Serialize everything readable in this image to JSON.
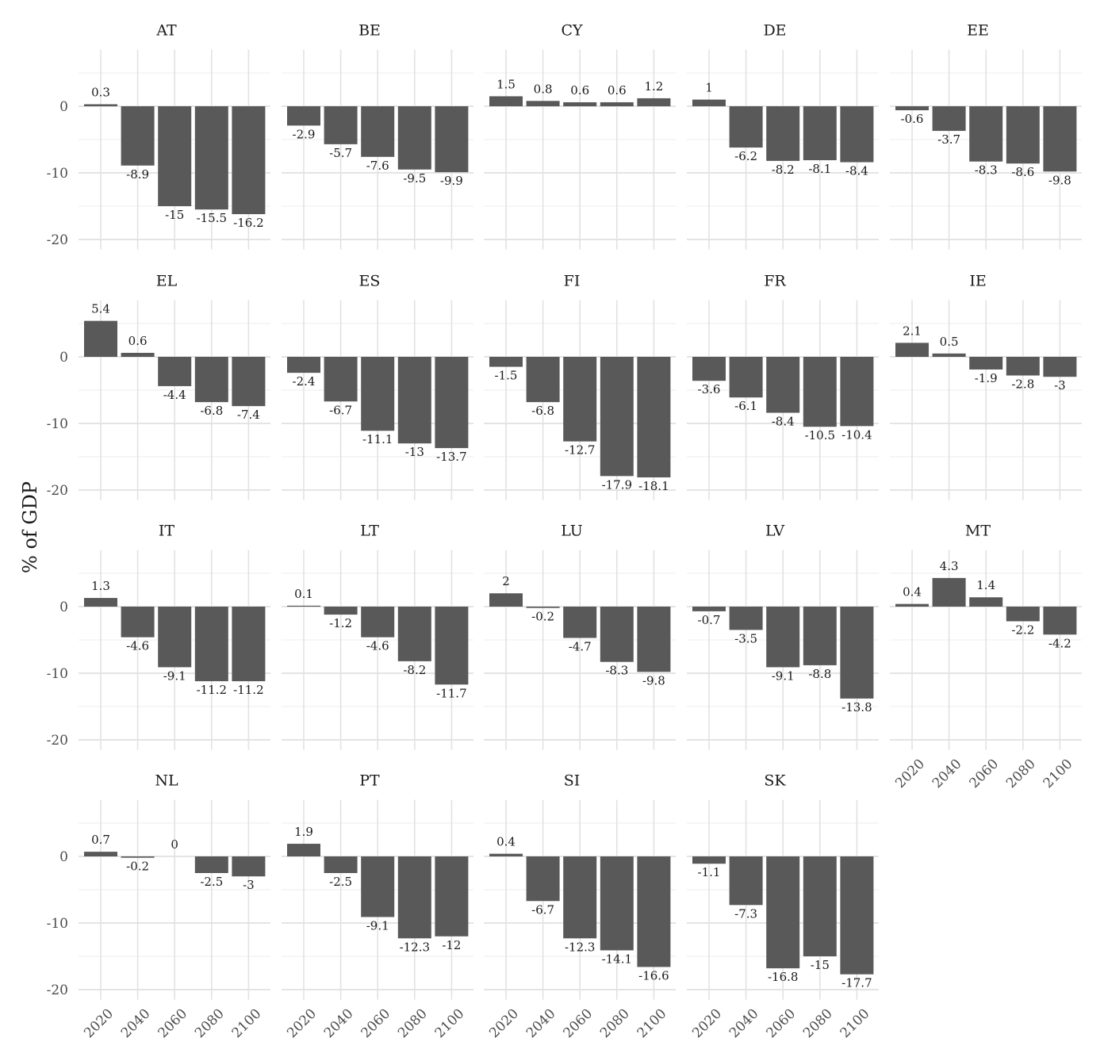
{
  "chart_data": {
    "type": "bar",
    "layout": "facet_wrap",
    "ylabel": "% of GDP",
    "xlabel": "",
    "x_ticks": [
      "2020",
      "2040",
      "2060",
      "2080",
      "2100"
    ],
    "y_ticks": [
      0,
      -10,
      -20
    ],
    "ylim": [
      -21.5,
      8.5
    ],
    "bar_color": "#595959",
    "grid": true,
    "panels": [
      {
        "name": "AT",
        "values": [
          0.3,
          -8.9,
          -15,
          -15.5,
          -16.2
        ],
        "labels": [
          "0.3",
          "-8.9",
          "-15",
          "-15.5",
          "-16.2"
        ]
      },
      {
        "name": "BE",
        "values": [
          -2.9,
          -5.7,
          -7.6,
          -9.5,
          -9.9
        ],
        "labels": [
          "-2.9",
          "-5.7",
          "-7.6",
          "-9.5",
          "-9.9"
        ]
      },
      {
        "name": "CY",
        "values": [
          1.5,
          0.8,
          0.6,
          0.6,
          1.2
        ],
        "labels": [
          "1.5",
          "0.8",
          "0.6",
          "0.6",
          "1.2"
        ]
      },
      {
        "name": "DE",
        "values": [
          1,
          -6.2,
          -8.2,
          -8.1,
          -8.4
        ],
        "labels": [
          "1",
          "-6.2",
          "-8.2",
          "-8.1",
          "-8.4"
        ]
      },
      {
        "name": "EE",
        "values": [
          -0.6,
          -3.7,
          -8.3,
          -8.6,
          -9.8
        ],
        "labels": [
          "-0.6",
          "-3.7",
          "-8.3",
          "-8.6",
          "-9.8"
        ]
      },
      {
        "name": "EL",
        "values": [
          5.4,
          0.6,
          -4.4,
          -6.8,
          -7.4
        ],
        "labels": [
          "5.4",
          "0.6",
          "-4.4",
          "-6.8",
          "-7.4"
        ]
      },
      {
        "name": "ES",
        "values": [
          -2.4,
          -6.7,
          -11.1,
          -13,
          -13.7
        ],
        "labels": [
          "-2.4",
          "-6.7",
          "-11.1",
          "-13",
          "-13.7"
        ]
      },
      {
        "name": "FI",
        "values": [
          -1.5,
          -6.8,
          -12.7,
          -17.9,
          -18.1
        ],
        "labels": [
          "-1.5",
          "-6.8",
          "-12.7",
          "-17.9",
          "-18.1"
        ]
      },
      {
        "name": "FR",
        "values": [
          -3.6,
          -6.1,
          -8.4,
          -10.5,
          -10.4
        ],
        "labels": [
          "-3.6",
          "-6.1",
          "-8.4",
          "-10.5",
          "-10.4"
        ]
      },
      {
        "name": "IE",
        "values": [
          2.1,
          0.5,
          -1.9,
          -2.8,
          -3
        ],
        "labels": [
          "2.1",
          "0.5",
          "-1.9",
          "-2.8",
          "-3"
        ]
      },
      {
        "name": "IT",
        "values": [
          1.3,
          -4.6,
          -9.1,
          -11.2,
          -11.2
        ],
        "labels": [
          "1.3",
          "-4.6",
          "-9.1",
          "-11.2",
          "-11.2"
        ]
      },
      {
        "name": "LT",
        "values": [
          0.1,
          -1.2,
          -4.6,
          -8.2,
          -11.7
        ],
        "labels": [
          "0.1",
          "-1.2",
          "-4.6",
          "-8.2",
          "-11.7"
        ]
      },
      {
        "name": "LU",
        "values": [
          2,
          -0.2,
          -4.7,
          -8.3,
          -9.8
        ],
        "labels": [
          "2",
          "-0.2",
          "-4.7",
          "-8.3",
          "-9.8"
        ]
      },
      {
        "name": "LV",
        "values": [
          -0.7,
          -3.5,
          -9.1,
          -8.8,
          -13.8
        ],
        "labels": [
          "-0.7",
          "-3.5",
          "-9.1",
          "-8.8",
          "-13.8"
        ]
      },
      {
        "name": "MT",
        "values": [
          0.4,
          4.3,
          1.4,
          -2.2,
          -4.2
        ],
        "labels": [
          "0.4",
          "4.3",
          "1.4",
          "-2.2",
          "-4.2"
        ]
      },
      {
        "name": "NL",
        "values": [
          0.7,
          -0.2,
          0,
          -2.5,
          -3
        ],
        "labels": [
          "0.7",
          "-0.2",
          "0",
          "-2.5",
          "-3"
        ]
      },
      {
        "name": "PT",
        "values": [
          1.9,
          -2.5,
          -9.1,
          -12.3,
          -12
        ],
        "labels": [
          "1.9",
          "-2.5",
          "-9.1",
          "-12.3",
          "-12"
        ]
      },
      {
        "name": "SI",
        "values": [
          0.4,
          -6.7,
          -12.3,
          -14.1,
          -16.6
        ],
        "labels": [
          "0.4",
          "-6.7",
          "-12.3",
          "-14.1",
          "-16.6"
        ]
      },
      {
        "name": "SK",
        "values": [
          -1.1,
          -7.3,
          -16.8,
          -15,
          -17.7
        ],
        "labels": [
          "-1.1",
          "-7.3",
          "-16.8",
          "-15",
          "-17.7"
        ]
      }
    ]
  }
}
